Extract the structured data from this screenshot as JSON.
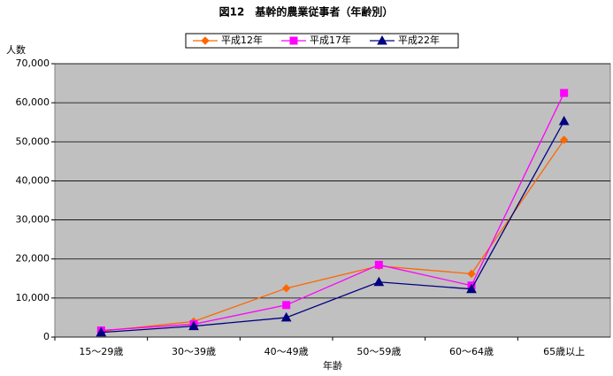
{
  "chart_data": {
    "type": "line",
    "title": "図12　基幹的農業従事者（年齢別）",
    "y_label": "人数",
    "x_label": "年齢",
    "categories": [
      "15～29歳",
      "30～39歳",
      "40～49歳",
      "50～59歳",
      "60～64歳",
      "65歳以上"
    ],
    "series": [
      {
        "name": "平成12年",
        "color": "#ff6600",
        "marker": "diamond",
        "values": [
          1500,
          4000,
          12500,
          18200,
          16200,
          50500
        ]
      },
      {
        "name": "平成17年",
        "color": "#ff00ff",
        "marker": "square",
        "values": [
          1700,
          3300,
          8200,
          18500,
          13200,
          62500
        ]
      },
      {
        "name": "平成22年",
        "color": "#000080",
        "marker": "triangle",
        "values": [
          1200,
          2800,
          5000,
          14100,
          12300,
          55300
        ]
      }
    ],
    "ylim": [
      0,
      70000
    ],
    "yticks": [
      0,
      {
        "value": 10000,
        "label": "10,000"
      },
      {
        "value": 20000,
        "label": "20,000"
      },
      {
        "value": 30000,
        "label": "30,000"
      },
      {
        "value": 40000,
        "label": "40,000"
      },
      {
        "value": 50000,
        "label": "50,000"
      },
      {
        "value": 60000,
        "label": "60,000"
      },
      {
        "value": 70000,
        "label": "70,000"
      }
    ],
    "grid": true,
    "legend": "top"
  }
}
